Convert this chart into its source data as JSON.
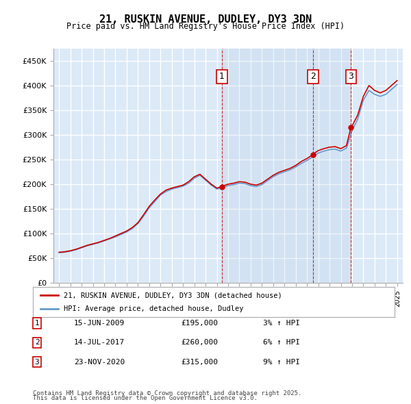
{
  "title": "21, RUSKIN AVENUE, DUDLEY, DY3 3DN",
  "subtitle": "Price paid vs. HM Land Registry's House Price Index (HPI)",
  "legend_line1": "21, RUSKIN AVENUE, DUDLEY, DY3 3DN (detached house)",
  "legend_line2": "HPI: Average price, detached house, Dudley",
  "ylabel_ticks": [
    "£0",
    "£50K",
    "£100K",
    "£150K",
    "£200K",
    "£250K",
    "£300K",
    "£350K",
    "£400K",
    "£450K"
  ],
  "ytick_values": [
    0,
    50000,
    100000,
    150000,
    200000,
    250000,
    300000,
    350000,
    400000,
    450000
  ],
  "ylim": [
    0,
    475000
  ],
  "xlim_start": 1994.5,
  "xlim_end": 2025.5,
  "xticks": [
    1995,
    1996,
    1997,
    1998,
    1999,
    2000,
    2001,
    2002,
    2003,
    2004,
    2005,
    2006,
    2007,
    2008,
    2009,
    2010,
    2011,
    2012,
    2013,
    2014,
    2015,
    2016,
    2017,
    2018,
    2019,
    2020,
    2021,
    2022,
    2023,
    2024,
    2025
  ],
  "background_color": "#ffffff",
  "plot_bg_color": "#dce9f7",
  "grid_color": "#ffffff",
  "red_line_color": "#cc0000",
  "blue_line_color": "#6699cc",
  "sale_marker_color": "#cc0000",
  "vline_color": "#cc0000",
  "sales": [
    {
      "year": 2009.45,
      "price": 195000,
      "label": "1",
      "date": "15-JUN-2009",
      "pct": "3%",
      "display_price": "£195,000"
    },
    {
      "year": 2017.54,
      "price": 260000,
      "label": "2",
      "date": "14-JUL-2017",
      "pct": "6%",
      "display_price": "£260,000"
    },
    {
      "year": 2020.9,
      "price": 315000,
      "label": "3",
      "date": "23-NOV-2020",
      "pct": "9%",
      "display_price": "£315,000"
    }
  ],
  "footer1": "Contains HM Land Registry data © Crown copyright and database right 2025.",
  "footer2": "This data is licensed under the Open Government Licence v3.0.",
  "red_hpi_data": {
    "years": [
      1995.0,
      1995.5,
      1996.0,
      1996.5,
      1997.0,
      1997.5,
      1998.0,
      1998.5,
      1999.0,
      1999.5,
      2000.0,
      2000.5,
      2001.0,
      2001.5,
      2002.0,
      2002.5,
      2003.0,
      2003.5,
      2004.0,
      2004.5,
      2005.0,
      2005.5,
      2006.0,
      2006.5,
      2007.0,
      2007.5,
      2008.0,
      2008.5,
      2009.0,
      2009.45,
      2009.5,
      2010.0,
      2010.5,
      2011.0,
      2011.5,
      2012.0,
      2012.5,
      2013.0,
      2013.5,
      2014.0,
      2014.5,
      2015.0,
      2015.5,
      2016.0,
      2016.5,
      2017.0,
      2017.54,
      2017.6,
      2018.0,
      2018.5,
      2019.0,
      2019.5,
      2020.0,
      2020.5,
      2020.9,
      2021.0,
      2021.5,
      2022.0,
      2022.5,
      2023.0,
      2023.5,
      2024.0,
      2024.5,
      2025.0
    ],
    "values": [
      62000,
      63000,
      65000,
      68000,
      72000,
      76000,
      79000,
      82000,
      86000,
      90000,
      95000,
      100000,
      105000,
      112000,
      122000,
      138000,
      155000,
      168000,
      180000,
      188000,
      192000,
      195000,
      198000,
      205000,
      215000,
      220000,
      210000,
      200000,
      192000,
      195000,
      196000,
      200000,
      202000,
      205000,
      204000,
      200000,
      198000,
      202000,
      210000,
      218000,
      224000,
      228000,
      232000,
      238000,
      246000,
      252000,
      260000,
      262000,
      268000,
      272000,
      275000,
      276000,
      272000,
      278000,
      315000,
      318000,
      340000,
      378000,
      400000,
      390000,
      385000,
      390000,
      400000,
      410000
    ]
  },
  "blue_hpi_data": {
    "years": [
      1995.0,
      1995.5,
      1996.0,
      1996.5,
      1997.0,
      1997.5,
      1998.0,
      1998.5,
      1999.0,
      1999.5,
      2000.0,
      2000.5,
      2001.0,
      2001.5,
      2002.0,
      2002.5,
      2003.0,
      2003.5,
      2004.0,
      2004.5,
      2005.0,
      2005.5,
      2006.0,
      2006.5,
      2007.0,
      2007.5,
      2008.0,
      2008.5,
      2009.0,
      2009.5,
      2010.0,
      2010.5,
      2011.0,
      2011.5,
      2012.0,
      2012.5,
      2013.0,
      2013.5,
      2014.0,
      2014.5,
      2015.0,
      2015.5,
      2016.0,
      2016.5,
      2017.0,
      2017.5,
      2018.0,
      2018.5,
      2019.0,
      2019.5,
      2020.0,
      2020.5,
      2021.0,
      2021.5,
      2022.0,
      2022.5,
      2023.0,
      2023.5,
      2024.0,
      2024.5,
      2025.0
    ],
    "values": [
      61000,
      62000,
      64000,
      67000,
      71000,
      75000,
      78000,
      81000,
      85000,
      89000,
      93000,
      98000,
      103000,
      110000,
      120000,
      135000,
      152000,
      165000,
      178000,
      185000,
      190000,
      193000,
      196000,
      202000,
      212000,
      218000,
      208000,
      198000,
      190000,
      193000,
      197000,
      199000,
      202000,
      201000,
      197000,
      195000,
      199000,
      207000,
      215000,
      221000,
      225000,
      229000,
      235000,
      242000,
      248000,
      255000,
      263000,
      267000,
      270000,
      271000,
      267000,
      273000,
      308000,
      332000,
      370000,
      390000,
      382000,
      378000,
      382000,
      392000,
      402000
    ]
  }
}
